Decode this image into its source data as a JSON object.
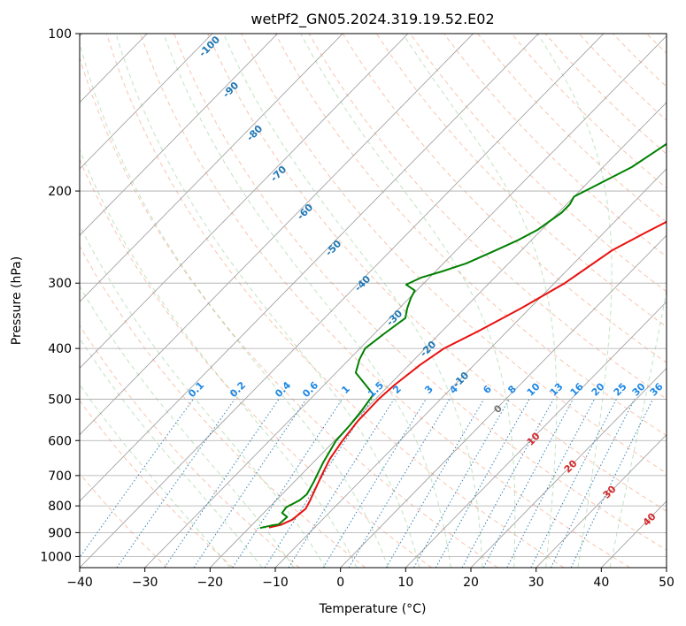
{
  "chart_data": {
    "type": "line",
    "title": "wetPf2_GN05.2024.319.19.52.E02",
    "xlabel": "Temperature (°C)",
    "ylabel": "Pressure (hPa)",
    "xlim": [
      -40,
      50
    ],
    "ylim": [
      1050,
      100
    ],
    "y_scale": "log",
    "grid": true,
    "x_ticks": [
      "−40",
      "−30",
      "−20",
      "−10",
      "0",
      "10",
      "20",
      "30",
      "40",
      "50"
    ],
    "y_ticks": [
      "100",
      "200",
      "300",
      "400",
      "500",
      "600",
      "700",
      "800",
      "900",
      "1000"
    ],
    "y_tick_values": [
      100,
      200,
      300,
      400,
      500,
      600,
      700,
      800,
      900,
      1000
    ],
    "isotherm_labels": [
      "-100",
      "-90",
      "-80",
      "-70",
      "-60",
      "-50",
      "-40",
      "-30",
      "-20",
      "-10"
    ],
    "mixing_ratio_labels": [
      "0.1",
      "0.2",
      "0.4",
      "0.6",
      "1",
      "1.5",
      "2",
      "3",
      "4",
      "6",
      "8",
      "10",
      "13",
      "16",
      "20",
      "25",
      "30",
      "36"
    ],
    "dry_adiabat_labels": [
      "0",
      "10",
      "20",
      "30",
      "40"
    ],
    "series": [
      {
        "color": "#e8110f",
        "points": [
          [
            -17,
            880
          ],
          [
            -15.6,
            870
          ],
          [
            -14.6,
            850
          ],
          [
            -14.2,
            810
          ],
          [
            -14.8,
            780
          ],
          [
            -16,
            730
          ],
          [
            -17,
            690
          ],
          [
            -18,
            650
          ],
          [
            -18.8,
            600
          ],
          [
            -19.4,
            550
          ],
          [
            -19.5,
            500
          ],
          [
            -19.2,
            470
          ],
          [
            -18.3,
            430
          ],
          [
            -17.1,
            400
          ],
          [
            -14.4,
            370
          ],
          [
            -11.3,
            335
          ],
          [
            -8.4,
            300
          ],
          [
            -7.3,
            280
          ],
          [
            -6.1,
            260
          ],
          [
            -3.6,
            240
          ],
          [
            0.1,
            215
          ],
          [
            3,
            200
          ],
          [
            6,
            185
          ],
          [
            9.3,
            170
          ],
          [
            13.6,
            155
          ],
          [
            16.5,
            145
          ],
          [
            20.4,
            135
          ],
          [
            24.3,
            125
          ],
          [
            27.6,
            118
          ],
          [
            31.2,
            112
          ],
          [
            35.8,
            106
          ],
          [
            40,
            100
          ]
        ]
      },
      {
        "color": "#008000",
        "points": [
          [
            -18.3,
            882
          ],
          [
            -16.9,
            872
          ],
          [
            -16,
            868
          ],
          [
            -15.8,
            840
          ],
          [
            -17.2,
            825
          ],
          [
            -17.4,
            805
          ],
          [
            -16.4,
            780
          ],
          [
            -16.2,
            760
          ],
          [
            -17,
            720
          ],
          [
            -18.5,
            660
          ],
          [
            -19.8,
            600
          ],
          [
            -20,
            560
          ],
          [
            -20.4,
            525
          ],
          [
            -21,
            490
          ],
          [
            -23.6,
            470
          ],
          [
            -27,
            445
          ],
          [
            -28.4,
            420
          ],
          [
            -29.2,
            400
          ],
          [
            -28.5,
            375
          ],
          [
            -27.6,
            350
          ],
          [
            -28.8,
            335
          ],
          [
            -29.8,
            320
          ],
          [
            -30.3,
            310
          ],
          [
            -32.5,
            302
          ],
          [
            -31.3,
            293
          ],
          [
            -29,
            285
          ],
          [
            -26.5,
            275
          ],
          [
            -24,
            260
          ],
          [
            -22,
            248
          ],
          [
            -20.6,
            237
          ],
          [
            -19.5,
            220
          ],
          [
            -19.5,
            212
          ],
          [
            -20,
            205
          ],
          [
            -18.3,
            195
          ],
          [
            -15.6,
            180
          ],
          [
            -14,
            165
          ],
          [
            -13,
            155
          ],
          [
            -12.7,
            148
          ],
          [
            -10.8,
            142
          ],
          [
            -8,
            136
          ],
          [
            -6.2,
            128
          ],
          [
            -5.3,
            120
          ],
          [
            -3,
            113
          ],
          [
            0.2,
            107
          ],
          [
            1.5,
            103
          ],
          [
            1.6,
            100
          ]
        ]
      }
    ]
  }
}
